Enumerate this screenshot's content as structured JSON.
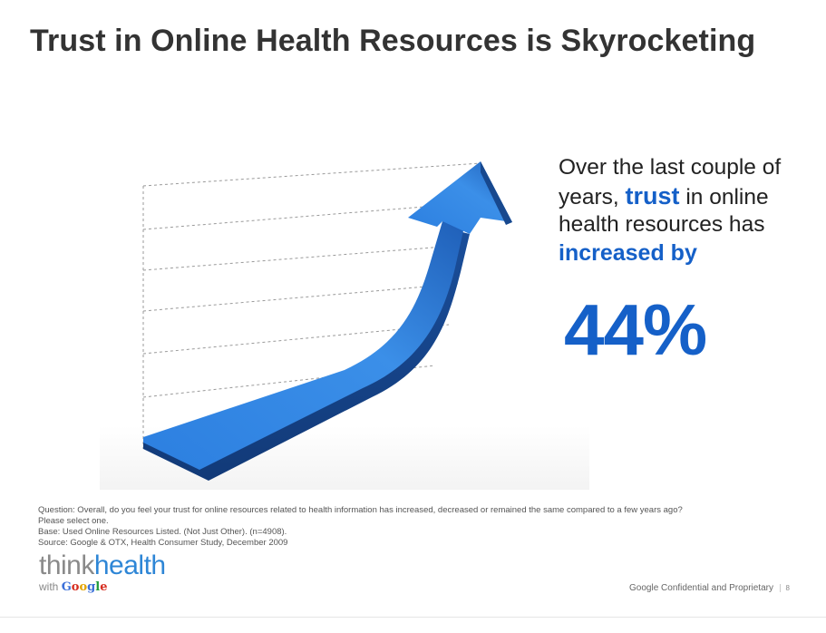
{
  "slide": {
    "title": "Trust in Online Health Resources is Skyrocketing"
  },
  "callout": {
    "line1": "Over the last couple of",
    "line2_prefix": "years, ",
    "line2_highlight": "trust",
    "line2_suffix": " in online",
    "line3": "health resources has",
    "line4": "increased by",
    "big_number": "44%"
  },
  "footnotes": {
    "question": "Question: Overall, do you feel your trust for online resources related to health information has increased, decreased  or remained the same compared to a few years ago?",
    "instruction": "Please select one.",
    "base": "Base: Used Online Resources Listed.  (Not Just Other).   (n=4908).",
    "source": "Source: Google & OTX, Health Consumer Study, December 2009"
  },
  "logo": {
    "think": "think",
    "health": "health",
    "with": "with ",
    "google_letters": [
      "G",
      "o",
      "o",
      "g",
      "l",
      "e"
    ]
  },
  "footer": {
    "confidential": "Google Confidential and Proprietary",
    "page_number": "8"
  },
  "colors": {
    "accent_blue": "#1560c8",
    "title_gray": "#333333",
    "arrow_blue": "#2a78d4"
  }
}
